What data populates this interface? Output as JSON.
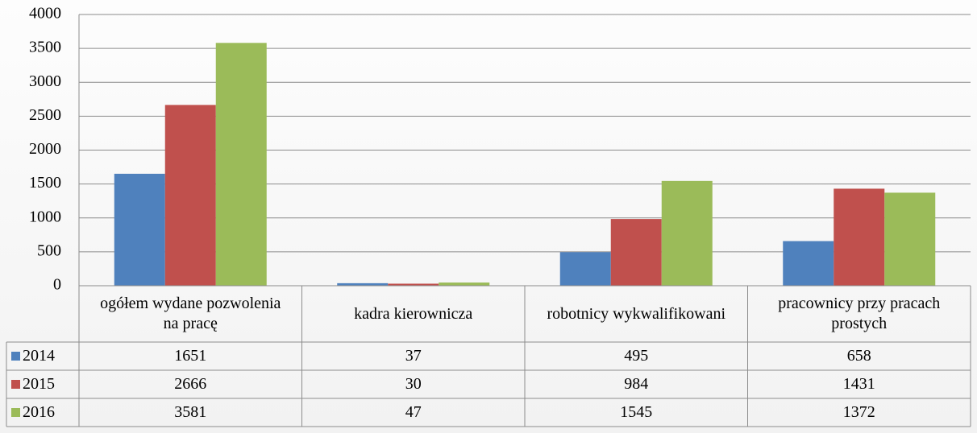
{
  "chart_data": {
    "type": "bar",
    "categories": [
      "ogółem wydane pozwolenia na pracę",
      "kadra kierownicza",
      "robotnicy wykwalifikowani",
      "pracownicy przy pracach prostych"
    ],
    "series": [
      {
        "name": "2014",
        "color": "#4f81bd",
        "values": [
          1651,
          37,
          495,
          658
        ]
      },
      {
        "name": "2015",
        "color": "#c0504d",
        "values": [
          2666,
          30,
          984,
          1431
        ]
      },
      {
        "name": "2016",
        "color": "#9bbb59",
        "values": [
          3581,
          47,
          1545,
          1372
        ]
      }
    ],
    "ylim": [
      0,
      4000
    ],
    "yticks": [
      0,
      500,
      1000,
      1500,
      2000,
      2500,
      3000,
      3500,
      4000
    ],
    "grid": true
  }
}
